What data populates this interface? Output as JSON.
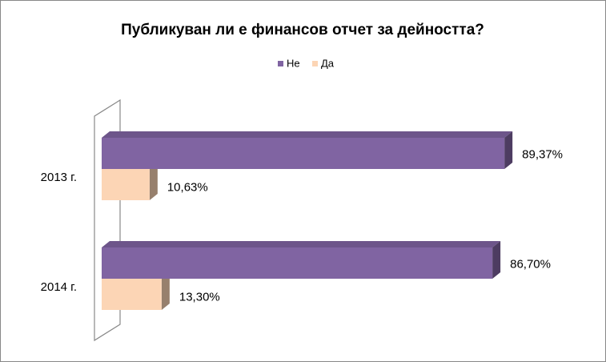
{
  "chart_data": {
    "type": "bar",
    "orientation": "horizontal",
    "title": "Публикуван ли е финансов отчет за дейността?",
    "categories": [
      "2013 г.",
      "2014 г."
    ],
    "series": [
      {
        "name": "Не",
        "color": "#8064a2",
        "values": [
          89.37,
          86.7
        ],
        "value_labels": [
          "89,37%",
          "86,70%"
        ]
      },
      {
        "name": "Да",
        "color": "#fcd5b5",
        "values": [
          10.63,
          13.3
        ],
        "value_labels": [
          "10,63%",
          "13,30%"
        ]
      }
    ],
    "legend": "top"
  }
}
